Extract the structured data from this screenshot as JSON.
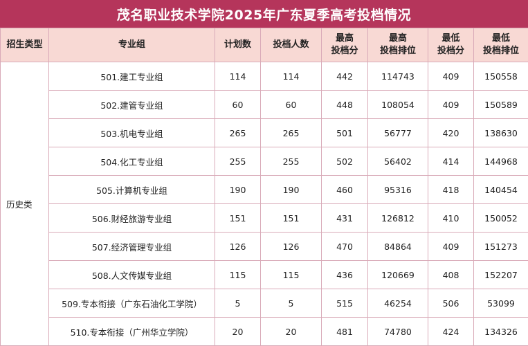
{
  "title": "茂名职业技术学院2025年广东夏季高考投档情况",
  "headers": {
    "category": "招生类型",
    "group": "专业组",
    "plan": "计划数",
    "admitted": "投档人数",
    "max_score_1": "最高",
    "max_score_2": "投档分",
    "max_rank_1": "最高",
    "max_rank_2": "投档排位",
    "min_score_1": "最低",
    "min_score_2": "投档分",
    "min_rank_1": "最低",
    "min_rank_2": "投档排位"
  },
  "category": "历史类",
  "rows": [
    {
      "group": "501.建工专业组",
      "plan": "114",
      "admitted": "114",
      "max_score": "442",
      "max_rank": "114743",
      "min_score": "409",
      "min_rank": "150558"
    },
    {
      "group": "502.建管专业组",
      "plan": "60",
      "admitted": "60",
      "max_score": "448",
      "max_rank": "108054",
      "min_score": "409",
      "min_rank": "150589"
    },
    {
      "group": "503.机电专业组",
      "plan": "265",
      "admitted": "265",
      "max_score": "501",
      "max_rank": "56777",
      "min_score": "420",
      "min_rank": "138630"
    },
    {
      "group": "504.化工专业组",
      "plan": "255",
      "admitted": "255",
      "max_score": "502",
      "max_rank": "56402",
      "min_score": "414",
      "min_rank": "144968"
    },
    {
      "group": "505.计算机专业组",
      "plan": "190",
      "admitted": "190",
      "max_score": "460",
      "max_rank": "95316",
      "min_score": "418",
      "min_rank": "140454"
    },
    {
      "group": "506.财经旅游专业组",
      "plan": "151",
      "admitted": "151",
      "max_score": "431",
      "max_rank": "126812",
      "min_score": "410",
      "min_rank": "150052"
    },
    {
      "group": "507.经济管理专业组",
      "plan": "126",
      "admitted": "126",
      "max_score": "470",
      "max_rank": "84864",
      "min_score": "409",
      "min_rank": "151273"
    },
    {
      "group": "508.人文传媒专业组",
      "plan": "115",
      "admitted": "115",
      "max_score": "436",
      "max_rank": "120669",
      "min_score": "408",
      "min_rank": "152207"
    },
    {
      "group": "509.专本衔接（广东石油化工学院）",
      "plan": "5",
      "admitted": "5",
      "max_score": "515",
      "max_rank": "46254",
      "min_score": "506",
      "min_rank": "53099"
    },
    {
      "group": "510.专本衔接（广州华立学院）",
      "plan": "20",
      "admitted": "20",
      "max_score": "481",
      "max_rank": "74780",
      "min_score": "424",
      "min_rank": "134326"
    }
  ],
  "colors": {
    "title_bg": "#b5355b",
    "header_bg": "#f8d9d4",
    "border": "#d9aab8"
  }
}
